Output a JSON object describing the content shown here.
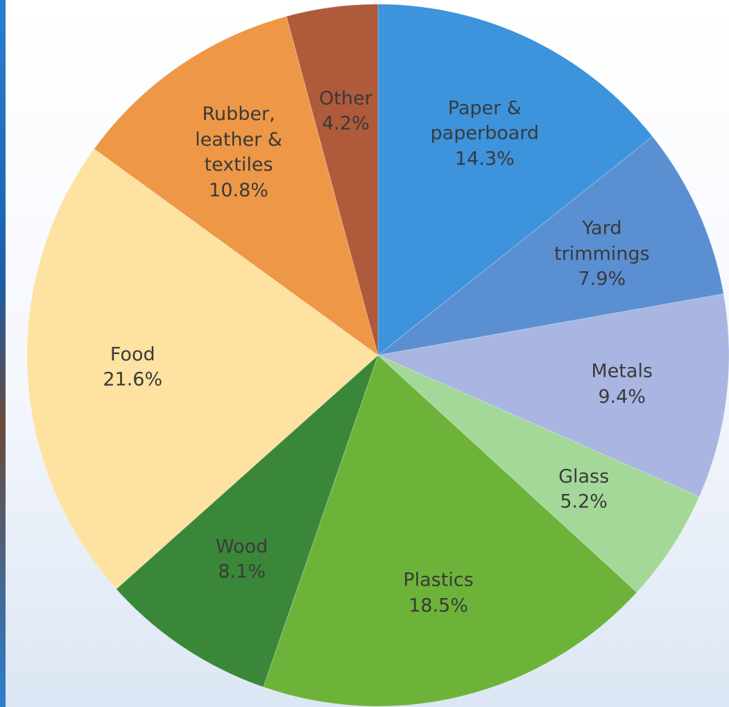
{
  "chart_data": {
    "type": "pie",
    "categories": [
      "Paper & paperboard",
      "Yard trimmings",
      "Metals",
      "Glass",
      "Plastics",
      "Wood",
      "Food",
      "Rubber, leather & textiles",
      "Other"
    ],
    "values": [
      14.3,
      7.9,
      9.4,
      5.2,
      18.5,
      8.1,
      21.6,
      10.8,
      4.2
    ],
    "value_labels": [
      "14.3%",
      "7.9%",
      "9.4%",
      "5.2%",
      "18.5%",
      "8.1%",
      "21.6%",
      "10.8%",
      "4.2%"
    ],
    "colors": [
      "#3d93dc",
      "#5a8fd2",
      "#a9b6e2",
      "#a4d899",
      "#6db33a",
      "#3b873a",
      "#fde2a2",
      "#ee9847",
      "#ae5a3b"
    ]
  }
}
